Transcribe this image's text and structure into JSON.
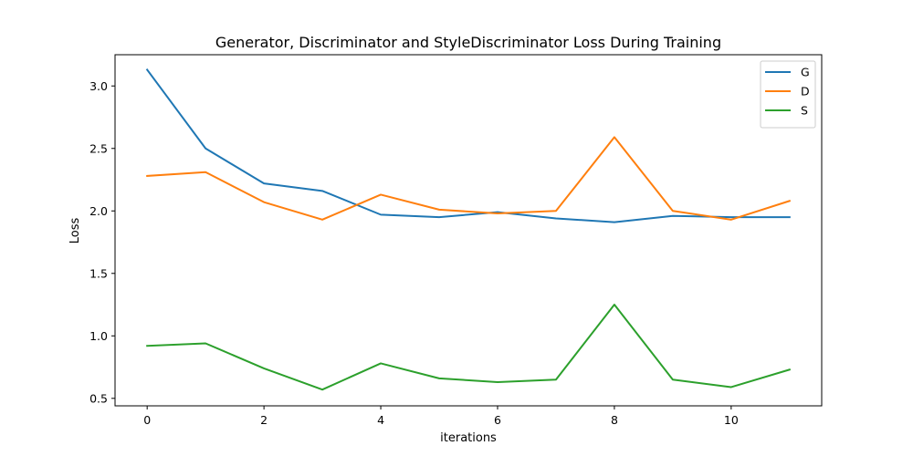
{
  "chart_data": {
    "type": "line",
    "title": "Generator, Discriminator and StyleDiscriminator Loss During Training",
    "xlabel": "iterations",
    "ylabel": "Loss",
    "x": [
      0,
      1,
      2,
      3,
      4,
      5,
      6,
      7,
      8,
      9,
      10,
      11
    ],
    "xlim": [
      -0.55,
      11.55
    ],
    "ylim": [
      0.44,
      3.25
    ],
    "xticks": [
      0,
      2,
      4,
      6,
      8,
      10
    ],
    "yticks": [
      0.5,
      1.0,
      1.5,
      2.0,
      2.5,
      3.0
    ],
    "xtick_labels": [
      "0",
      "2",
      "4",
      "6",
      "8",
      "10"
    ],
    "ytick_labels": [
      "0.5",
      "1.0",
      "1.5",
      "2.0",
      "2.5",
      "3.0"
    ],
    "grid": false,
    "legend_position": "top-right",
    "series": [
      {
        "name": "G",
        "color": "#1f77b4",
        "values": [
          3.13,
          2.5,
          2.22,
          2.16,
          1.97,
          1.95,
          1.99,
          1.94,
          1.91,
          1.96,
          1.95,
          1.95
        ]
      },
      {
        "name": "D",
        "color": "#ff7f0e",
        "values": [
          2.28,
          2.31,
          2.07,
          1.93,
          2.13,
          2.01,
          1.98,
          2.0,
          2.59,
          2.0,
          1.93,
          2.08
        ]
      },
      {
        "name": "S",
        "color": "#2ca02c",
        "values": [
          0.92,
          0.94,
          0.74,
          0.57,
          0.78,
          0.66,
          0.63,
          0.65,
          1.25,
          0.65,
          0.59,
          0.73
        ]
      }
    ]
  }
}
